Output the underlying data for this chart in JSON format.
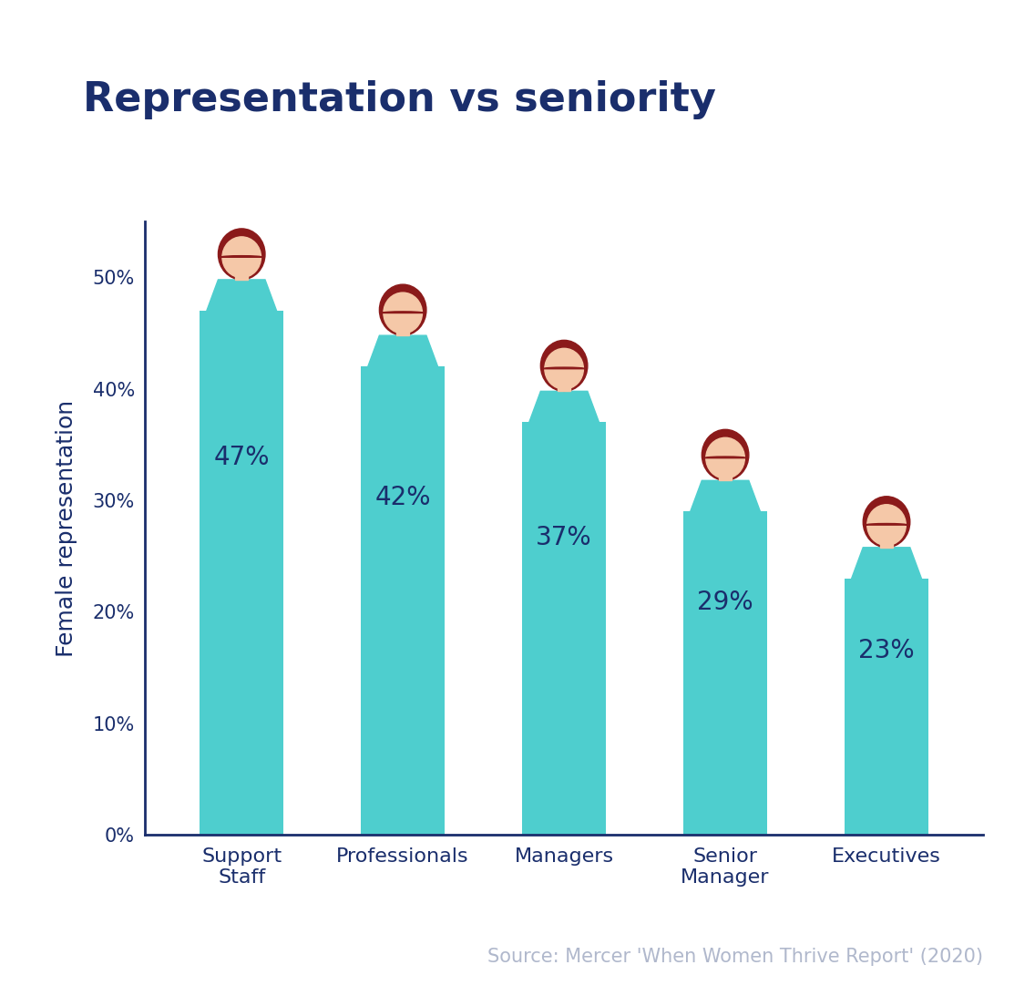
{
  "title": "Representation vs seniority",
  "title_color": "#1a2e6c",
  "title_fontsize": 32,
  "categories": [
    "Support\nStaff",
    "Professionals",
    "Managers",
    "Senior\nManager",
    "Executives"
  ],
  "values": [
    47,
    42,
    37,
    29,
    23
  ],
  "labels": [
    "47%",
    "42%",
    "37%",
    "29%",
    "23%"
  ],
  "bar_color": "#4ecece",
  "ylabel": "Female representation",
  "ylabel_color": "#1a2e6c",
  "ylabel_fontsize": 18,
  "ytick_labels": [
    "0%",
    "10%",
    "20%",
    "30%",
    "40%",
    "50%"
  ],
  "ytick_color": "#1a2e6c",
  "xtick_color": "#1a2e6c",
  "axis_color": "#1a2e6c",
  "label_color": "#1a2e6c",
  "label_fontsize": 20,
  "source_text": "Source: Mercer 'When Women Thrive Report' (2020)",
  "source_color": "#b0b8cc",
  "source_fontsize": 15,
  "background_color": "#ffffff",
  "hair_color": "#8b1a1a",
  "skin_color": "#f5c8a8",
  "body_color": "#4ecece",
  "ylim": [
    0,
    55
  ],
  "bar_width": 0.52
}
